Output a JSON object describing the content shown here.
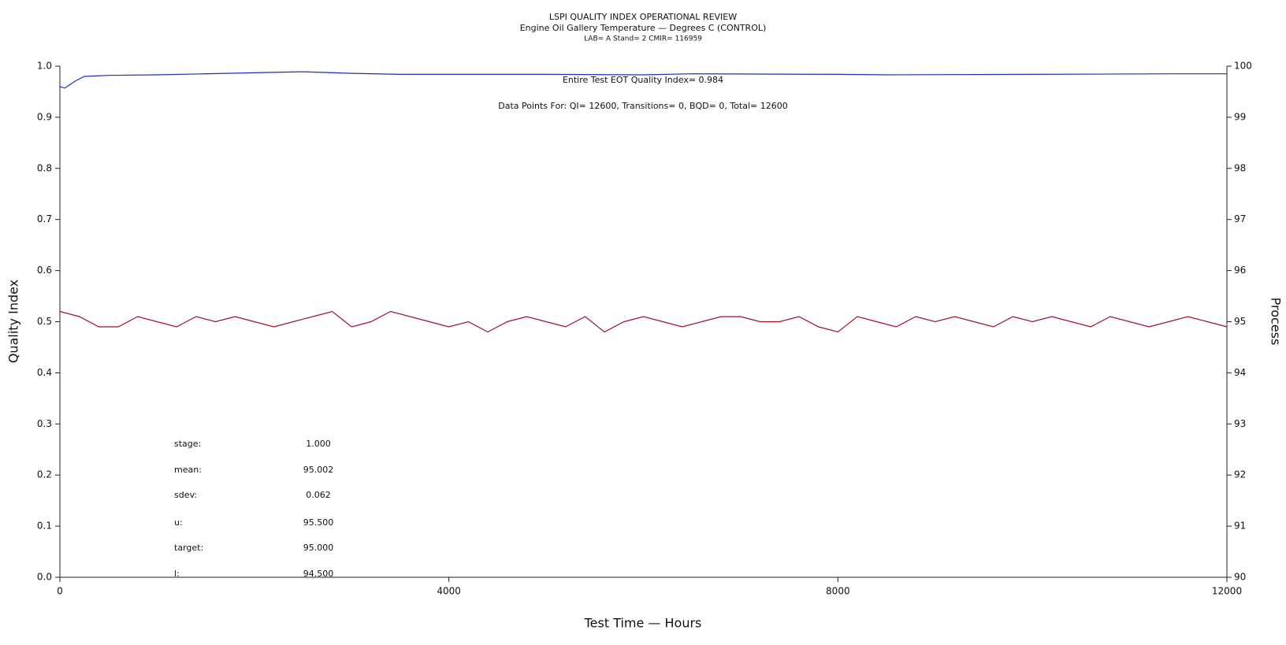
{
  "chart_data": {
    "type": "line",
    "title": "LSPI QUALITY INDEX OPERATIONAL REVIEW",
    "subtitle": "Engine Oil Gallery Temperature — Degrees C (CONTROL)",
    "subsubtitle": "LAB= A Stand= 2 CMIR= 116959",
    "x_label": "Test Time — Hours",
    "y_label": "Quality Index",
    "y2_label": "Process",
    "annotations": [
      "Entire Test EOT Quality Index=   0.984",
      "Data Points For: QI= 12600, Transitions=     0, BQD=     0, Total= 12600"
    ],
    "stats": [
      {
        "label": "stage:",
        "value": "1.000"
      },
      {
        "label": "mean:",
        "value": "95.002"
      },
      {
        "label": "sdev:",
        "value": "0.062"
      },
      {
        "label": "u:",
        "value": "95.500"
      },
      {
        "label": "target:",
        "value": "95.000"
      },
      {
        "label": "l:",
        "value": "94.500"
      }
    ],
    "xlim": [
      0,
      12000
    ],
    "xticks": [
      0,
      4000,
      8000,
      12000
    ],
    "ylim": [
      0,
      1
    ],
    "yticks": [
      {
        "value": 0,
        "label": "0.0"
      },
      0.1,
      0.2,
      0.3,
      0.4,
      0.5,
      0.6,
      0.7,
      0.8,
      0.9,
      {
        "value": 1,
        "label": "1.0"
      }
    ],
    "y2lim": [
      90,
      100
    ],
    "y2ticks": [
      90,
      91,
      92,
      93,
      94,
      95,
      96,
      97,
      98,
      99,
      100
    ],
    "series": [
      {
        "color": "#1f2fb5",
        "x": [
          0,
          50,
          150,
          250,
          500,
          1000,
          2000,
          2500,
          3000,
          3500,
          5000,
          6000,
          6500,
          8000,
          8500,
          10000,
          11500,
          12000
        ],
        "values": [
          0.96,
          0.957,
          0.97,
          0.98,
          0.982,
          0.983,
          0.987,
          0.989,
          0.986,
          0.984,
          0.984,
          0.983,
          0.985,
          0.984,
          0.983,
          0.984,
          0.985,
          0.985
        ]
      },
      {
        "color": "#a0122a",
        "axis": "y2",
        "x": [
          0,
          200,
          400,
          600,
          800,
          1000,
          1200,
          1400,
          1600,
          1800,
          2000,
          2200,
          2400,
          2600,
          2800,
          3000,
          3200,
          3400,
          3600,
          3800,
          4000,
          4200,
          4400,
          4600,
          4800,
          5000,
          5200,
          5400,
          5600,
          5800,
          6000,
          6200,
          6400,
          6600,
          6800,
          7000,
          7200,
          7400,
          7600,
          7800,
          8000,
          8200,
          8400,
          8600,
          8800,
          9000,
          9200,
          9400,
          9600,
          9800,
          10000,
          10200,
          10400,
          10600,
          10800,
          11000,
          11200,
          11400,
          11600,
          11800,
          12000
        ],
        "values": [
          95.2,
          95.1,
          94.9,
          94.9,
          95.1,
          95.0,
          94.9,
          95.1,
          95.0,
          95.1,
          95.0,
          94.9,
          95.0,
          95.1,
          95.2,
          94.9,
          95.0,
          95.2,
          95.1,
          95.0,
          94.9,
          95.0,
          94.8,
          95.0,
          95.1,
          95.0,
          94.9,
          95.1,
          94.8,
          95.0,
          95.1,
          95.0,
          94.9,
          95.0,
          95.1,
          95.1,
          95.0,
          95.0,
          95.1,
          94.9,
          94.8,
          95.1,
          95.0,
          94.9,
          95.1,
          95.0,
          95.1,
          95.0,
          94.9,
          95.1,
          95.0,
          95.1,
          95.0,
          94.9,
          95.1,
          95.0,
          94.9,
          95.0,
          95.1,
          95.0,
          94.9
        ]
      }
    ]
  }
}
